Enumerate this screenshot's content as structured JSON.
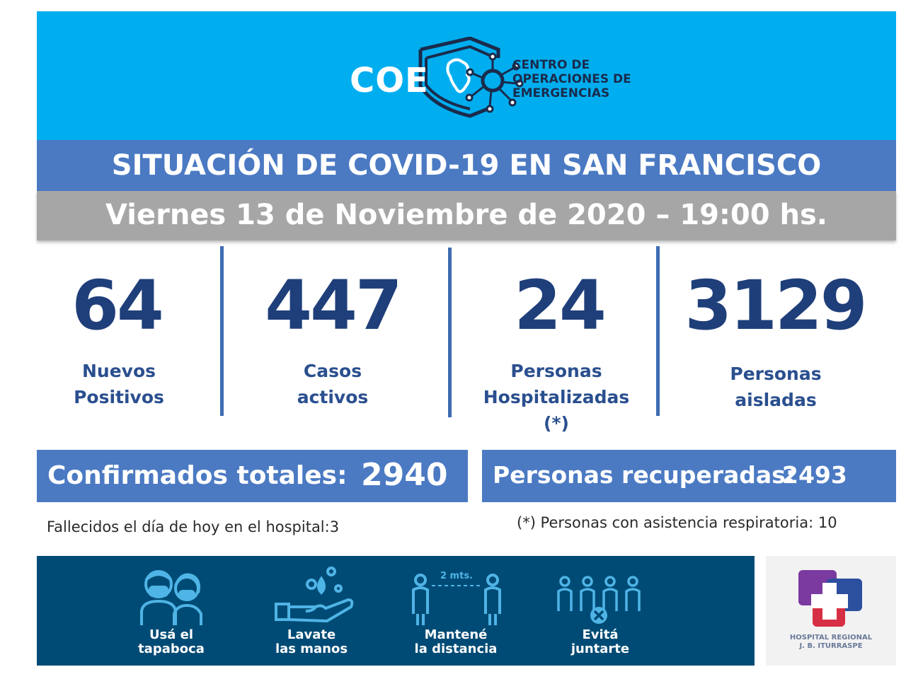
{
  "header": {
    "logo_word": "COE",
    "logo_name_lines": [
      "CENTRO DE",
      "OPERACIONES DE",
      "EMERGENCIAS"
    ]
  },
  "title": "SITUACIÓN DE COVID-19 EN SAN FRANCISCO",
  "date": "Viernes 13 de Noviembre de 2020 – 19:00 hs.",
  "stats": [
    {
      "value": "64",
      "label_lines": [
        "Nuevos",
        "Positivos"
      ]
    },
    {
      "value": "447",
      "label_lines": [
        "Casos",
        "activos"
      ]
    },
    {
      "value": "24",
      "label_lines": [
        "Personas",
        "Hospitalizadas",
        "(*)"
      ]
    },
    {
      "value": "3129",
      "label_lines": [
        "Personas",
        "aisladas"
      ]
    }
  ],
  "totals": {
    "confirmed_label": "Confirmados totales:",
    "confirmed_value": "2940",
    "recovered_label": "Personas recuperadas:",
    "recovered_value": "2493"
  },
  "notes": {
    "deaths": "Fallecidos el día de hoy en el hospital:3",
    "respiratory": "(*) Personas con asistencia respiratoria: 10"
  },
  "tips": [
    {
      "icon": "mask-icon",
      "lines": [
        "Usá el",
        "tapaboca"
      ]
    },
    {
      "icon": "hand-wash-icon",
      "lines": [
        "Lavate",
        "las manos"
      ]
    },
    {
      "icon": "distance-icon",
      "distance_label": "2 mts.",
      "lines": [
        "Mantené",
        "la distancia"
      ]
    },
    {
      "icon": "no-gathering-icon",
      "lines": [
        "Evitá",
        "juntarte"
      ]
    }
  ],
  "hospital": {
    "icon": "hospital-cross-logo",
    "lines": [
      "HOSPITAL REGIONAL",
      "J. B. ITURRASPE"
    ]
  },
  "colors": {
    "header_bg": "#00aeef",
    "title_band": "#4b7ac3",
    "date_band": "#a6a6a6",
    "number_color": "#1f3f7a",
    "tips_bg": "#004b75"
  }
}
